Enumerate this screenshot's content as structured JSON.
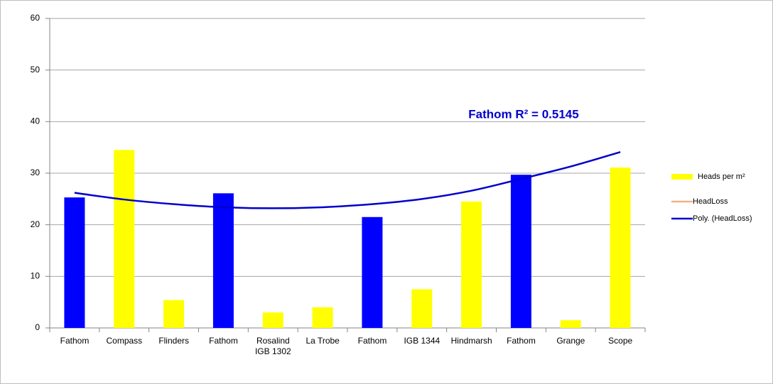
{
  "chart_data": {
    "type": "bar",
    "categories": [
      "Fathom",
      "Compass",
      "Flinders",
      "Fathom",
      "Rosalind IGB 1302",
      "La Trobe",
      "Fathom",
      "IGB 1344",
      "Hindmarsh",
      "Fathom",
      "Grange",
      "Scope"
    ],
    "series": [
      {
        "name": "Heads per m²",
        "type": "bar",
        "color": "#ffff00",
        "colors": [
          "#0000ff",
          "#ffff00",
          "#ffff00",
          "#0000ff",
          "#ffff00",
          "#ffff00",
          "#0000ff",
          "#ffff00",
          "#ffff00",
          "#0000ff",
          "#ffff00",
          "#ffff00"
        ],
        "values": [
          25.3,
          34.5,
          5.4,
          26.1,
          3.0,
          4.0,
          21.5,
          7.5,
          24.5,
          29.7,
          1.5,
          31.1
        ]
      },
      {
        "name": "HeadLoss",
        "type": "line",
        "color": "#f4b183",
        "values": [
          null,
          null,
          null,
          null,
          null,
          null,
          null,
          null,
          null,
          null,
          null,
          null
        ]
      },
      {
        "name": "Poly. (HeadLoss)",
        "type": "line",
        "color": "#0000cc",
        "values": [
          26.2,
          24.9,
          24.0,
          23.4,
          23.2,
          23.4,
          24.0,
          25.0,
          26.6,
          28.9,
          31.3,
          34.1
        ]
      }
    ],
    "annotation": "Fathom R² = 0.5145",
    "ylim": [
      0,
      60
    ],
    "yticks": [
      0,
      10,
      20,
      30,
      40,
      50,
      60
    ],
    "grid": true,
    "legend": "right"
  }
}
